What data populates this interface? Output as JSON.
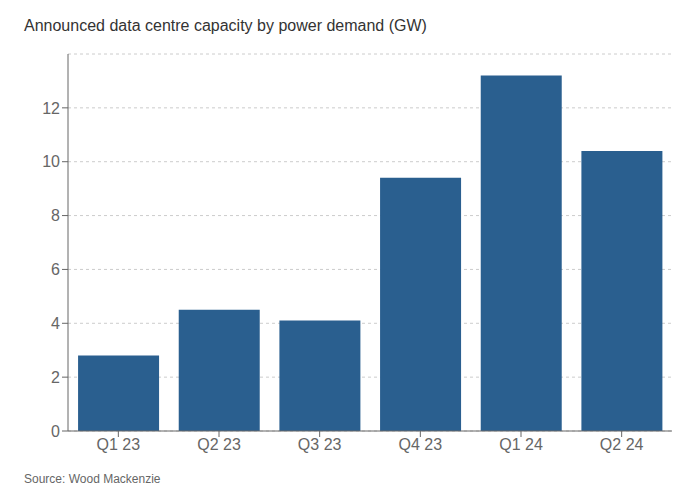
{
  "chart_data": {
    "type": "bar",
    "title": "Announced data centre capacity by power demand (GW)",
    "categories": [
      "Q1 23",
      "Q2 23",
      "Q3 23",
      "Q4 23",
      "Q1 24",
      "Q2 24"
    ],
    "values": [
      2.8,
      4.5,
      4.1,
      9.4,
      13.2,
      10.4
    ],
    "color": "#2a5f8f",
    "ylim": [
      0,
      14
    ],
    "yticks": [
      0,
      2,
      4,
      6,
      8,
      10,
      12
    ],
    "grid": true,
    "annotations": [
      "Source: Wood Mackenzie"
    ]
  }
}
